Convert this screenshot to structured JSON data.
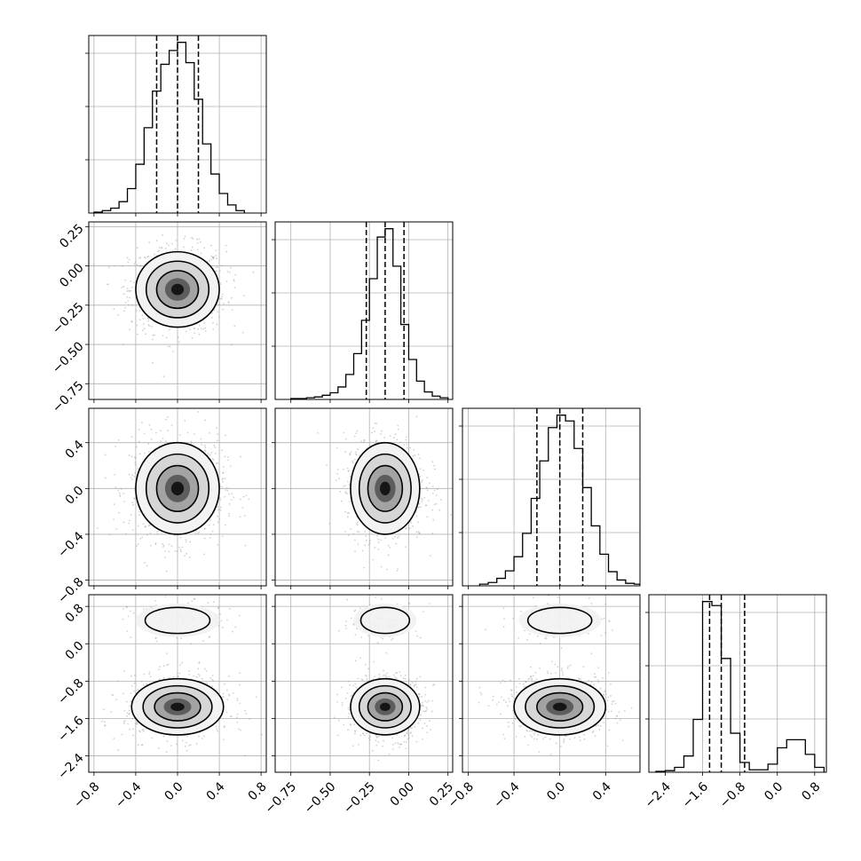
{
  "chart_data": {
    "type": "corner",
    "parameters": [
      {
        "range": [
          -0.85,
          0.85
        ],
        "ticks": [
          -0.8,
          -0.4,
          0.0,
          0.4,
          0.8
        ],
        "tick_labels": [
          "−0.8",
          "−0.4",
          "0.0",
          "0.4",
          "0.8"
        ],
        "quantiles": [
          -0.2,
          0.0,
          0.2
        ]
      },
      {
        "range": [
          -0.85,
          0.28
        ],
        "ticks": [
          -0.75,
          -0.5,
          -0.25,
          0.0,
          0.25
        ],
        "tick_labels": [
          "−0.75",
          "−0.50",
          "−0.25",
          "0.00",
          "0.25"
        ],
        "quantiles": [
          -0.27,
          -0.15,
          -0.03
        ]
      },
      {
        "range": [
          -0.85,
          0.7
        ],
        "ticks": [
          -0.8,
          -0.4,
          0.0,
          0.4
        ],
        "tick_labels": [
          "−0.8",
          "−0.4",
          "0.0",
          "0.4"
        ],
        "quantiles": [
          -0.2,
          0.0,
          0.2
        ]
      },
      {
        "range": [
          -2.75,
          1.05
        ],
        "ticks": [
          -2.4,
          -1.6,
          -0.8,
          0.0,
          0.8
        ],
        "tick_labels": [
          "−2.4",
          "−1.6",
          "−0.8",
          "0.0",
          "0.8"
        ],
        "quantiles": [
          -1.45,
          -1.2,
          -0.7
        ]
      }
    ],
    "histograms": [
      {
        "param": 0,
        "bin_edges": [
          -0.8,
          -0.72,
          -0.64,
          -0.56,
          -0.48,
          -0.4,
          -0.32,
          -0.24,
          -0.16,
          -0.08,
          0.0,
          0.08,
          0.16,
          0.24,
          0.32,
          0.4,
          0.48,
          0.56,
          0.64
        ],
        "counts": [
          1,
          3,
          6,
          14,
          30,
          60,
          105,
          150,
          183,
          200,
          210,
          185,
          140,
          85,
          48,
          24,
          10,
          3
        ]
      },
      {
        "param": 1,
        "bin_edges": [
          -0.75,
          -0.7,
          -0.65,
          -0.6,
          -0.55,
          -0.5,
          -0.45,
          -0.4,
          -0.35,
          -0.3,
          -0.25,
          -0.2,
          -0.15,
          -0.1,
          -0.05,
          0.0,
          0.05,
          0.1,
          0.15,
          0.2,
          0.25
        ],
        "counts": [
          1,
          1,
          2,
          3,
          5,
          8,
          15,
          30,
          55,
          95,
          145,
          195,
          205,
          160,
          90,
          48,
          22,
          9,
          4,
          2
        ]
      },
      {
        "param": 2,
        "bin_edges": [
          -0.7,
          -0.625,
          -0.55,
          -0.475,
          -0.4,
          -0.325,
          -0.25,
          -0.175,
          -0.1,
          -0.025,
          0.05,
          0.125,
          0.2,
          0.275,
          0.35,
          0.425,
          0.5,
          0.575,
          0.65,
          0.7
        ],
        "counts": [
          2,
          4,
          9,
          18,
          35,
          63,
          105,
          150,
          190,
          205,
          198,
          165,
          118,
          72,
          38,
          17,
          7,
          3,
          2
        ]
      },
      {
        "param": 3,
        "bin_edges": [
          -2.6,
          -2.4,
          -2.2,
          -2.0,
          -1.8,
          -1.6,
          -1.4,
          -1.2,
          -1.0,
          -0.8,
          -0.6,
          -0.4,
          -0.2,
          0.0,
          0.2,
          0.4,
          0.6,
          0.8,
          1.0
        ],
        "counts": [
          1,
          2,
          6,
          20,
          65,
          210,
          205,
          140,
          48,
          12,
          3,
          3,
          10,
          30,
          40,
          40,
          22,
          6
        ]
      }
    ],
    "pairs": [
      {
        "x_param": 0,
        "y_param": 1,
        "modes": [
          {
            "cx": 0.0,
            "cy": -0.15,
            "sx": 0.2,
            "sy": 0.12,
            "weight": 1.0
          }
        ]
      },
      {
        "x_param": 0,
        "y_param": 2,
        "modes": [
          {
            "cx": 0.0,
            "cy": 0.0,
            "sx": 0.2,
            "sy": 0.2,
            "weight": 1.0
          }
        ]
      },
      {
        "x_param": 1,
        "y_param": 2,
        "modes": [
          {
            "cx": -0.15,
            "cy": 0.0,
            "sx": 0.11,
            "sy": 0.2,
            "weight": 1.0
          }
        ]
      },
      {
        "x_param": 0,
        "y_param": 3,
        "modes": [
          {
            "cx": 0.0,
            "cy": -1.35,
            "sx": 0.22,
            "sy": 0.3,
            "weight": 0.82
          },
          {
            "cx": 0.0,
            "cy": 0.5,
            "sx": 0.2,
            "sy": 0.18,
            "weight": 0.18
          }
        ]
      },
      {
        "x_param": 1,
        "y_param": 3,
        "modes": [
          {
            "cx": -0.15,
            "cy": -1.35,
            "sx": 0.11,
            "sy": 0.3,
            "weight": 0.82
          },
          {
            "cx": -0.15,
            "cy": 0.5,
            "sx": 0.1,
            "sy": 0.18,
            "weight": 0.18
          }
        ]
      },
      {
        "x_param": 2,
        "y_param": 3,
        "modes": [
          {
            "cx": 0.0,
            "cy": -1.35,
            "sx": 0.2,
            "sy": 0.3,
            "weight": 0.82
          },
          {
            "cx": 0.0,
            "cy": 0.5,
            "sx": 0.18,
            "sy": 0.18,
            "weight": 0.18
          }
        ]
      }
    ],
    "grid": true,
    "colors": {
      "line": "#000000",
      "grid": "#b0b0b0",
      "points": "#999999",
      "background": "#ffffff"
    }
  }
}
